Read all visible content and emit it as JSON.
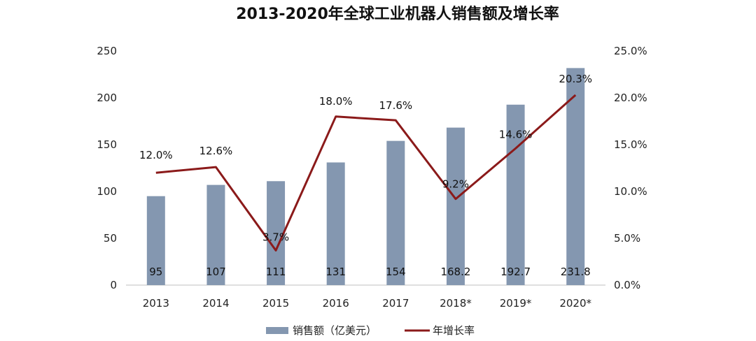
{
  "colors": {
    "bar": "#8497b0",
    "line": "#8b1a1a"
  },
  "chart_data": {
    "type": "bar",
    "title": "2013-2020年全球工业机器人销售额及增长率",
    "categories": [
      "2013",
      "2014",
      "2015",
      "2016",
      "2017",
      "2018*",
      "2019*",
      "2020*"
    ],
    "series": [
      {
        "name": "销售额（亿美元）",
        "type": "bar",
        "axis": "left",
        "values": [
          95,
          107,
          111,
          131,
          154,
          168.2,
          192.7,
          231.8
        ],
        "labels": [
          "95",
          "107",
          "111",
          "131",
          "154",
          "168.2",
          "192.7",
          "231.8"
        ]
      },
      {
        "name": "年增长率",
        "type": "line",
        "axis": "right",
        "values": [
          12.0,
          12.6,
          3.7,
          18.0,
          17.6,
          9.2,
          14.6,
          20.3
        ],
        "labels": [
          "12.0%",
          "12.6%",
          "3.7%",
          "18.0%",
          "17.6%",
          "9.2%",
          "14.6%",
          "20.3%"
        ]
      }
    ],
    "y_left": {
      "range": [
        0,
        250
      ],
      "ticks": [
        "0",
        "50",
        "100",
        "150",
        "200",
        "250"
      ]
    },
    "y_right": {
      "range": [
        0,
        25
      ],
      "ticks": [
        "0.0%",
        "5.0%",
        "10.0%",
        "15.0%",
        "20.0%",
        "25.0%"
      ]
    },
    "grid": false,
    "legend": "bottom"
  }
}
